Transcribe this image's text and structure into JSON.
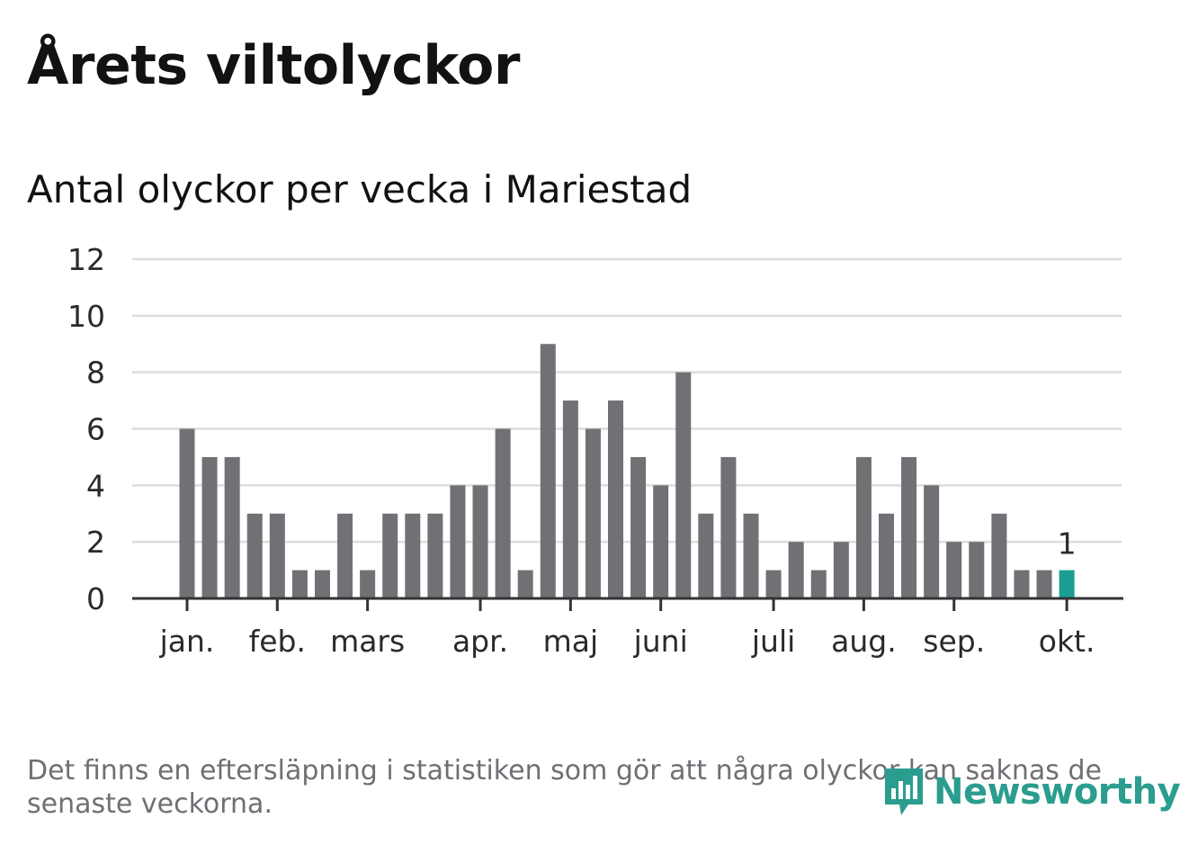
{
  "header": {
    "title": "Årets viltolyckor",
    "subtitle": "Antal olyckor per vecka i Mariestad"
  },
  "footnote": "Det finns en eftersläpning i statistiken som gör att några olyckor kan saknas de senaste veckorna.",
  "logo": {
    "text": "Newsworthy"
  },
  "colors": {
    "bar": "#717075",
    "highlight": "#1a9e93",
    "grid": "#dcdcdc",
    "axis": "#333333",
    "brand": "#2a9d8f"
  },
  "chart_data": {
    "type": "bar",
    "title": "Antal olyckor per vecka i Mariestad",
    "xlabel": "",
    "ylabel": "",
    "ylim": [
      0,
      12
    ],
    "yticks": [
      0,
      2,
      4,
      6,
      8,
      10,
      12
    ],
    "grid": true,
    "month_labels": [
      {
        "label": "jan.",
        "week": 1
      },
      {
        "label": "feb.",
        "week": 5
      },
      {
        "label": "mars",
        "week": 9
      },
      {
        "label": "apr.",
        "week": 14
      },
      {
        "label": "maj",
        "week": 18
      },
      {
        "label": "juni",
        "week": 22
      },
      {
        "label": "juli",
        "week": 27
      },
      {
        "label": "aug.",
        "week": 31
      },
      {
        "label": "sep.",
        "week": 35
      },
      {
        "label": "okt.",
        "week": 40
      }
    ],
    "weeks": [
      1,
      2,
      3,
      4,
      5,
      6,
      7,
      8,
      9,
      10,
      11,
      12,
      13,
      14,
      15,
      16,
      17,
      18,
      19,
      20,
      21,
      22,
      23,
      24,
      25,
      26,
      27,
      28,
      29,
      30,
      31,
      32,
      33,
      34,
      35,
      36,
      37,
      38,
      39,
      40
    ],
    "values": [
      6,
      5,
      5,
      3,
      3,
      1,
      1,
      3,
      1,
      3,
      3,
      3,
      4,
      4,
      6,
      1,
      9,
      7,
      6,
      7,
      5,
      4,
      8,
      3,
      5,
      3,
      1,
      2,
      1,
      2,
      5,
      3,
      5,
      4,
      2,
      2,
      3,
      1,
      1,
      1
    ],
    "highlight_index": 39,
    "highlight_label": "1"
  }
}
